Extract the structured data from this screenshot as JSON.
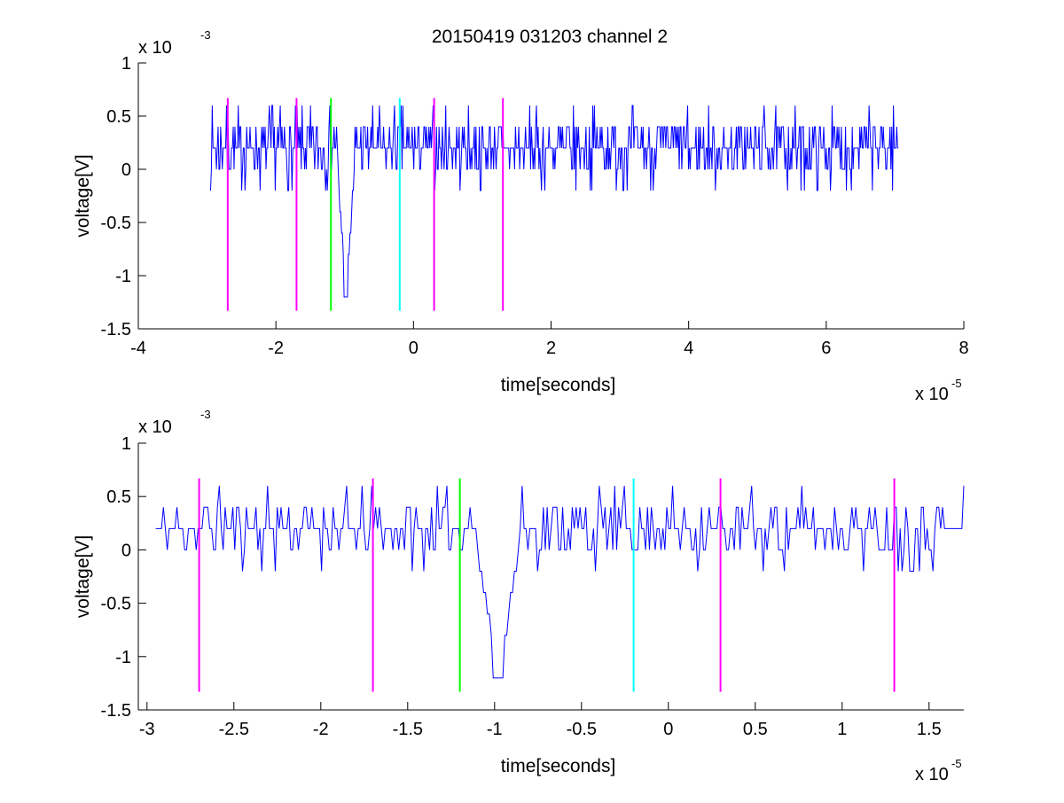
{
  "chart_data": [
    {
      "type": "line",
      "title": "20150419 031203 channel 2",
      "xlabel": "time[seconds]",
      "ylabel": "voltage[V]",
      "x_multiplier": "x 10",
      "x_exponent": "-5",
      "y_multiplier": "x 10",
      "y_exponent": "-3",
      "xlim": [
        -4,
        8
      ],
      "ylim": [
        -1.5,
        1
      ],
      "x_ticks": [
        -4,
        -2,
        0,
        2,
        4,
        6,
        8
      ],
      "x_tick_labels": [
        "-4",
        "-2",
        "0",
        "2",
        "4",
        "6",
        "8"
      ],
      "y_ticks": [
        -1.5,
        -1,
        -0.5,
        0,
        0.5,
        1
      ],
      "y_tick_labels": [
        "-1.5",
        "-1",
        "-0.5",
        "0",
        "0.5",
        "1"
      ],
      "signal": {
        "color": "#0000ff",
        "x_start": -2.95,
        "x_end": 7.05,
        "levels": [
          -0.2,
          0,
          0.2,
          0.4,
          0.6
        ],
        "dip": {
          "x": -0.98,
          "y": -1.2
        }
      },
      "markers": [
        {
          "x": -2.7,
          "y_from": -1.33,
          "y_to": 0.67,
          "color": "#ff00ff"
        },
        {
          "x": -1.7,
          "y_from": -1.33,
          "y_to": 0.67,
          "color": "#ff00ff"
        },
        {
          "x": -1.2,
          "y_from": -1.33,
          "y_to": 0.67,
          "color": "#00ff00"
        },
        {
          "x": -0.2,
          "y_from": -1.33,
          "y_to": 0.67,
          "color": "#00ffff"
        },
        {
          "x": 0.3,
          "y_from": -1.33,
          "y_to": 0.67,
          "color": "#ff00ff"
        },
        {
          "x": 1.3,
          "y_from": -1.33,
          "y_to": 0.67,
          "color": "#ff00ff"
        }
      ]
    },
    {
      "type": "line",
      "title": "",
      "xlabel": "time[seconds]",
      "ylabel": "voltage[V]",
      "x_multiplier": "x 10",
      "x_exponent": "-5",
      "y_multiplier": "x 10",
      "y_exponent": "-3",
      "xlim": [
        -3.05,
        1.7
      ],
      "ylim": [
        -1.5,
        1
      ],
      "x_ticks": [
        -3,
        -2.5,
        -2,
        -1.5,
        -1,
        -0.5,
        0,
        0.5,
        1,
        1.5
      ],
      "x_tick_labels": [
        "-3",
        "-2.5",
        "-2",
        "-1.5",
        "-1",
        "-0.5",
        "0",
        "0.5",
        "1",
        "1.5"
      ],
      "y_ticks": [
        -1.5,
        -1,
        -0.5,
        0,
        0.5,
        1
      ],
      "y_tick_labels": [
        "-1.5",
        "-1",
        "-0.5",
        "0",
        "0.5",
        "1"
      ],
      "signal": {
        "color": "#0000ff",
        "x_start": -2.95,
        "x_end": 1.7,
        "levels": [
          -0.2,
          0,
          0.2,
          0.4,
          0.6
        ],
        "dip": {
          "x": -0.98,
          "y": -1.2
        }
      },
      "markers": [
        {
          "x": -2.7,
          "y_from": -1.33,
          "y_to": 0.67,
          "color": "#ff00ff"
        },
        {
          "x": -1.7,
          "y_from": -1.33,
          "y_to": 0.67,
          "color": "#ff00ff"
        },
        {
          "x": -1.2,
          "y_from": -1.33,
          "y_to": 0.67,
          "color": "#00ff00"
        },
        {
          "x": -0.2,
          "y_from": -1.33,
          "y_to": 0.67,
          "color": "#00ffff"
        },
        {
          "x": 0.3,
          "y_from": -1.33,
          "y_to": 0.67,
          "color": "#ff00ff"
        },
        {
          "x": 1.3,
          "y_from": -1.33,
          "y_to": 0.67,
          "color": "#ff00ff"
        }
      ]
    }
  ]
}
